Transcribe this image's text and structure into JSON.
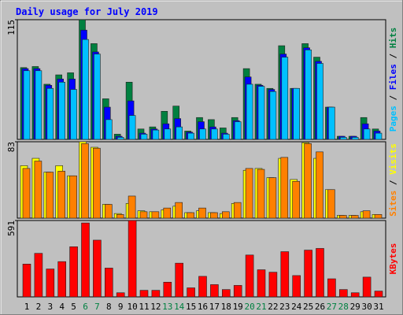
{
  "title": "Daily usage for July 2019",
  "categories": [
    "1",
    "2",
    "3",
    "4",
    "5",
    "6",
    "7",
    "8",
    "9",
    "10",
    "11",
    "12",
    "13",
    "14",
    "15",
    "16",
    "17",
    "18",
    "19",
    "20",
    "21",
    "22",
    "23",
    "24",
    "25",
    "26",
    "27",
    "28",
    "29",
    "30",
    "31"
  ],
  "category_colors": [
    "#000000",
    "#000000",
    "#000000",
    "#000000",
    "#000000",
    "#008040",
    "#008040",
    "#000000",
    "#000000",
    "#000000",
    "#000000",
    "#000000",
    "#008040",
    "#008040",
    "#000000",
    "#000000",
    "#000000",
    "#000000",
    "#000000",
    "#008040",
    "#008040",
    "#000000",
    "#000000",
    "#000000",
    "#000000",
    "#000000",
    "#008040",
    "#008040",
    "#000000",
    "#000000",
    "#000000"
  ],
  "legend_separator": " / ",
  "chart_data": [
    {
      "type": "bar",
      "ylim": [
        0,
        115
      ],
      "yticks": [
        115
      ],
      "series": [
        {
          "name": "Hits",
          "color": "#008040",
          "values": [
            69,
            70,
            53,
            62,
            64,
            115,
            92,
            39,
            5,
            55,
            10,
            12,
            27,
            32,
            8,
            21,
            19,
            11,
            21,
            68,
            53,
            49,
            90,
            49,
            92,
            79,
            31,
            3,
            3,
            21,
            10
          ]
        },
        {
          "name": "Files",
          "color": "#0000ff",
          "values": [
            68,
            68,
            52,
            58,
            58,
            105,
            84,
            31,
            3,
            37,
            6,
            10,
            15,
            20,
            7,
            17,
            12,
            6,
            18,
            60,
            52,
            48,
            82,
            49,
            88,
            75,
            31,
            3,
            3,
            15,
            8
          ]
        },
        {
          "name": "Pages",
          "color": "#00c0ff",
          "values": [
            66,
            66,
            49,
            55,
            48,
            96,
            82,
            19,
            2,
            23,
            5,
            9,
            10,
            12,
            6,
            10,
            10,
            5,
            17,
            53,
            51,
            46,
            79,
            49,
            86,
            73,
            31,
            2,
            2,
            10,
            6
          ]
        }
      ]
    },
    {
      "type": "bar",
      "ylim": [
        0,
        83
      ],
      "yticks": [
        83
      ],
      "series": [
        {
          "name": "Visits",
          "color": "#ffff00",
          "values": [
            57,
            65,
            50,
            57,
            46,
            83,
            77,
            15,
            5,
            16,
            8,
            7,
            9,
            13,
            6,
            8,
            6,
            5,
            16,
            52,
            54,
            44,
            65,
            42,
            82,
            65,
            31,
            3,
            3,
            7,
            4
          ]
        },
        {
          "name": "Sites",
          "color": "#ff8000",
          "values": [
            54,
            62,
            50,
            51,
            46,
            81,
            76,
            15,
            4,
            24,
            7,
            7,
            11,
            17,
            6,
            11,
            6,
            7,
            17,
            54,
            53,
            44,
            66,
            40,
            81,
            72,
            31,
            3,
            3,
            8,
            4
          ]
        }
      ]
    },
    {
      "type": "bar",
      "ylim": [
        0,
        591
      ],
      "yticks": [
        591
      ],
      "series": [
        {
          "name": "KBytes",
          "color": "#ff0000",
          "values": [
            254,
            337,
            216,
            273,
            388,
            572,
            439,
            223,
            32,
            591,
            51,
            51,
            114,
            261,
            70,
            159,
            95,
            57,
            89,
            324,
            210,
            191,
            350,
            165,
            362,
            375,
            140,
            57,
            32,
            153,
            45
          ]
        }
      ]
    }
  ]
}
